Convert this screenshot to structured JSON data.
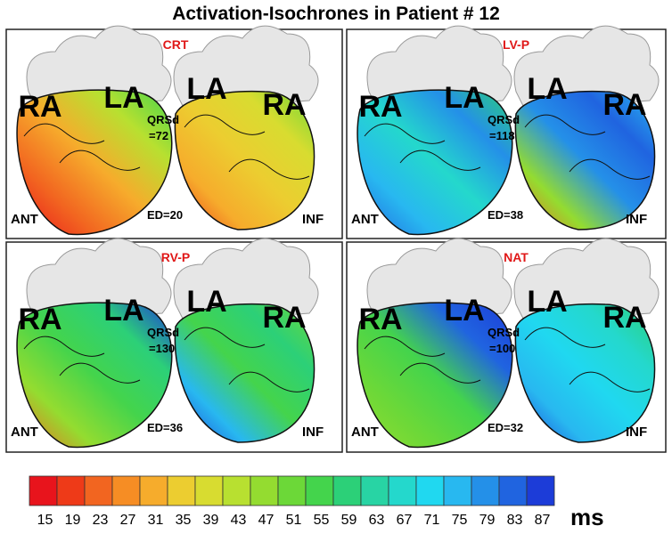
{
  "title": "Activation-Isochrones in Patient # 12",
  "panels": [
    {
      "label": "CRT",
      "qrsd_label": "QRSd",
      "qrsd": "=72",
      "ed": "ED=20",
      "left_atria": [
        "RA",
        "LA"
      ],
      "right_atria": [
        "LA",
        "RA"
      ],
      "view_left": "ANT",
      "view_right": "INF"
    },
    {
      "label": "LV-P",
      "qrsd_label": "QRSd",
      "qrsd": "=118",
      "ed": "ED=38",
      "left_atria": [
        "RA",
        "LA"
      ],
      "right_atria": [
        "LA",
        "RA"
      ],
      "view_left": "ANT",
      "view_right": "INF"
    },
    {
      "label": "RV-P",
      "qrsd_label": "QRSd",
      "qrsd": "=130",
      "ed": "ED=36",
      "left_atria": [
        "RA",
        "LA"
      ],
      "right_atria": [
        "LA",
        "RA"
      ],
      "view_left": "ANT",
      "view_right": "INF"
    },
    {
      "label": "NAT",
      "qrsd_label": "QRSd",
      "qrsd": "=100",
      "ed": "ED=32",
      "left_atria": [
        "RA",
        "LA"
      ],
      "right_atria": [
        "LA",
        "RA"
      ],
      "view_left": "ANT",
      "view_right": "INF"
    }
  ],
  "colorbar": {
    "ticks": [
      15,
      19,
      23,
      27,
      31,
      35,
      39,
      43,
      47,
      51,
      55,
      59,
      63,
      67,
      71,
      75,
      79,
      83,
      87
    ],
    "colors": [
      "#e8141c",
      "#ee3a18",
      "#f26520",
      "#f68d24",
      "#f6ac2c",
      "#eccd30",
      "#d8dc30",
      "#b8e030",
      "#94dc30",
      "#6cd838",
      "#44d44c",
      "#2cd078",
      "#28d4a4",
      "#24d8cc",
      "#20d8f0",
      "#28b8f0",
      "#2490e8",
      "#2064e0",
      "#1c3cd8"
    ],
    "unit": "ms"
  }
}
